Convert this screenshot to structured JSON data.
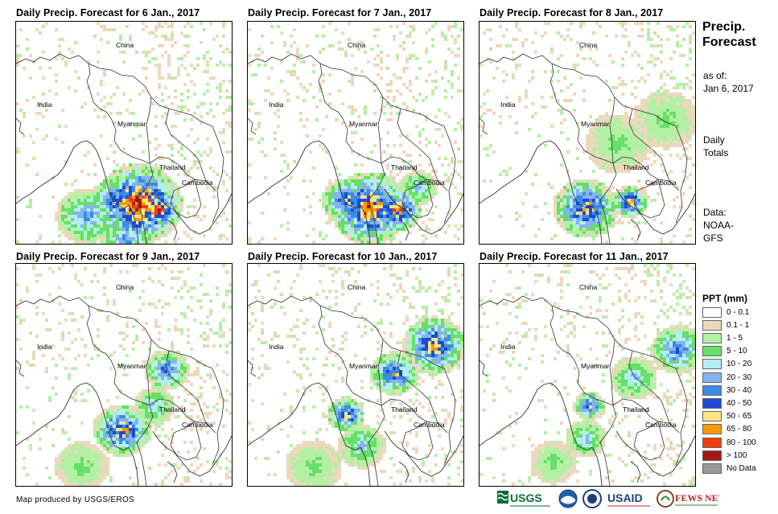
{
  "panels": [
    {
      "title": "Daily Precip. Forecast for 6 Jan., 2017"
    },
    {
      "title": "Daily Precip. Forecast for 7 Jan., 2017"
    },
    {
      "title": "Daily Precip. Forecast for 8 Jan., 2017"
    },
    {
      "title": "Daily Precip. Forecast for 9 Jan., 2017"
    },
    {
      "title": "Daily Precip. Forecast for 10 Jan., 2017"
    },
    {
      "title": "Daily Precip. Forecast for 11 Jan., 2017"
    }
  ],
  "places": {
    "china": "China",
    "india": "India",
    "myanmar": "Myanmar",
    "thailand": "Thailand",
    "cambodia": "Cambodia"
  },
  "side": {
    "title_line1": "Precip.",
    "title_line2": "Forecast",
    "asof_line1": "as of:",
    "asof_line2": "Jan 6, 2017",
    "daily_line1": "Daily",
    "daily_line2": "Totals",
    "data_line1": "Data:",
    "data_line2": "NOAA-",
    "data_line3": "GFS"
  },
  "legend": {
    "title": "PPT (mm)",
    "items": [
      {
        "label": "0 - 0.1",
        "color": "#ffffff"
      },
      {
        "label": "0.1 - 1",
        "color": "#ecd9bd"
      },
      {
        "label": "1 - 5",
        "color": "#b4f0a4"
      },
      {
        "label": "5 - 10",
        "color": "#66e066"
      },
      {
        "label": "10 - 20",
        "color": "#b4ecf4"
      },
      {
        "label": "20 - 30",
        "color": "#84b4ec"
      },
      {
        "label": "30 - 40",
        "color": "#3c8ce6"
      },
      {
        "label": "40 - 50",
        "color": "#1c4cd4"
      },
      {
        "label": "50 - 65",
        "color": "#fce484"
      },
      {
        "label": "65 - 80",
        "color": "#f49a08"
      },
      {
        "label": "80 - 100",
        "color": "#f23c10"
      },
      {
        "label": "> 100",
        "color": "#a41818"
      },
      {
        "label": "No Data",
        "color": "#999999"
      }
    ]
  },
  "credit": "Map produced by USGS/EROS",
  "logos": {
    "usgs": "USGS",
    "usaid": "USAID",
    "fewsnet": "FEWS NET"
  }
}
